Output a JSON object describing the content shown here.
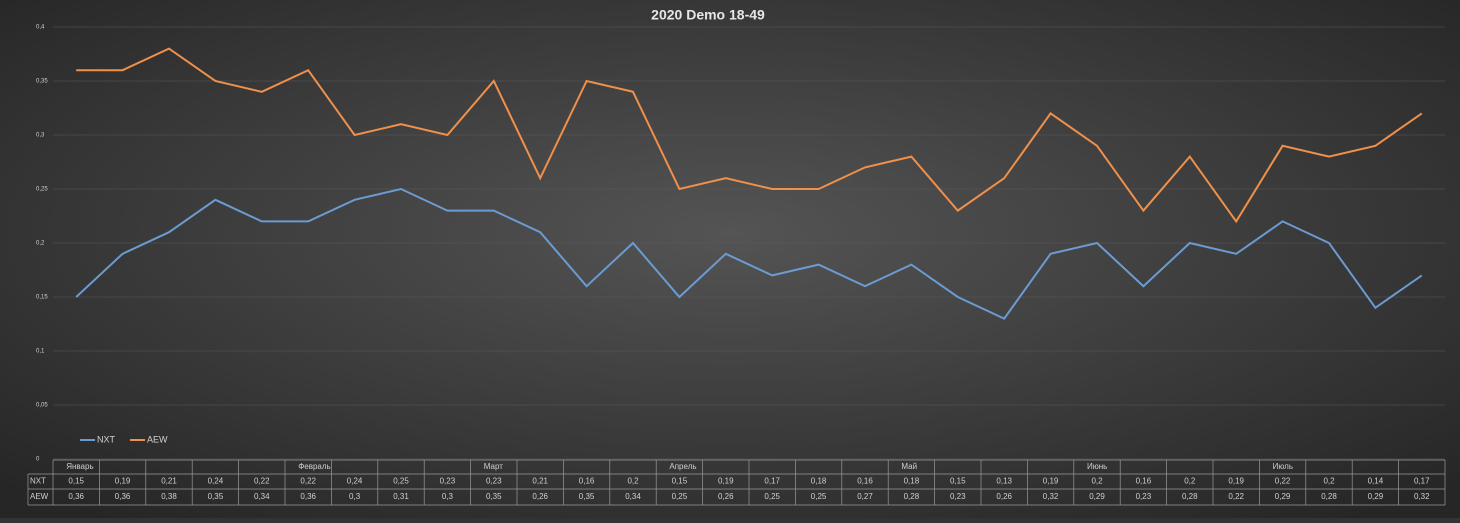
{
  "chart_data": {
    "type": "line",
    "title": "2020 Demo 18-49",
    "categories": [
      "Январь",
      null,
      null,
      null,
      null,
      "Февраль",
      null,
      null,
      null,
      "Март",
      null,
      null,
      null,
      "Апрель",
      null,
      null,
      null,
      null,
      "Май",
      null,
      null,
      null,
      "Июнь",
      null,
      null,
      null,
      "Июль",
      null,
      null,
      null
    ],
    "series": [
      {
        "name": "NXT",
        "color": "#6b9bd1",
        "values": [
          0.15,
          0.19,
          0.21,
          0.24,
          0.22,
          0.22,
          0.24,
          0.25,
          0.23,
          0.23,
          0.21,
          0.16,
          0.2,
          0.15,
          0.19,
          0.17,
          0.18,
          0.16,
          0.18,
          0.15,
          0.13,
          0.19,
          0.2,
          0.16,
          0.2,
          0.19,
          0.22,
          0.2,
          0.14,
          0.17
        ],
        "value_labels": [
          "0,15",
          "0,19",
          "0,21",
          "0,24",
          "0,22",
          "0,22",
          "0,24",
          "0,25",
          "0,23",
          "0,23",
          "0,21",
          "0,16",
          "0,2",
          "0,15",
          "0,19",
          "0,17",
          "0,18",
          "0,16",
          "0,18",
          "0,15",
          "0,13",
          "0,19",
          "0,2",
          "0,16",
          "0,2",
          "0,19",
          "0,22",
          "0,2",
          "0,14",
          "0,17"
        ]
      },
      {
        "name": "AEW",
        "color": "#f0904a",
        "values": [
          0.36,
          0.36,
          0.38,
          0.35,
          0.34,
          0.36,
          0.3,
          0.31,
          0.3,
          0.35,
          0.26,
          0.35,
          0.34,
          0.25,
          0.26,
          0.25,
          0.25,
          0.27,
          0.28,
          0.23,
          0.26,
          0.32,
          0.29,
          0.23,
          0.28,
          0.22,
          0.29,
          0.28,
          0.29,
          0.32
        ],
        "value_labels": [
          "0,36",
          "0,36",
          "0,38",
          "0,35",
          "0,34",
          "0,36",
          "0,3",
          "0,31",
          "0,3",
          "0,35",
          "0,26",
          "0,35",
          "0,34",
          "0,25",
          "0,26",
          "0,25",
          "0,25",
          "0,27",
          "0,28",
          "0,23",
          "0,26",
          "0,32",
          "0,29",
          "0,23",
          "0,28",
          "0,22",
          "0,29",
          "0,28",
          "0,29",
          "0,32"
        ]
      }
    ],
    "ylim": [
      0,
      0.4
    ],
    "yticks": [
      {
        "value": 0,
        "label": "0"
      },
      {
        "value": 0.05,
        "label": "0,05"
      },
      {
        "value": 0.1,
        "label": "0,1"
      },
      {
        "value": 0.15,
        "label": "0,15"
      },
      {
        "value": 0.2,
        "label": "0,2"
      },
      {
        "value": 0.25,
        "label": "0,25"
      },
      {
        "value": 0.3,
        "label": "0,3"
      },
      {
        "value": 0.35,
        "label": "0,35"
      },
      {
        "value": 0.4,
        "label": "0,4"
      }
    ],
    "grid": true,
    "legend": "lower left"
  }
}
